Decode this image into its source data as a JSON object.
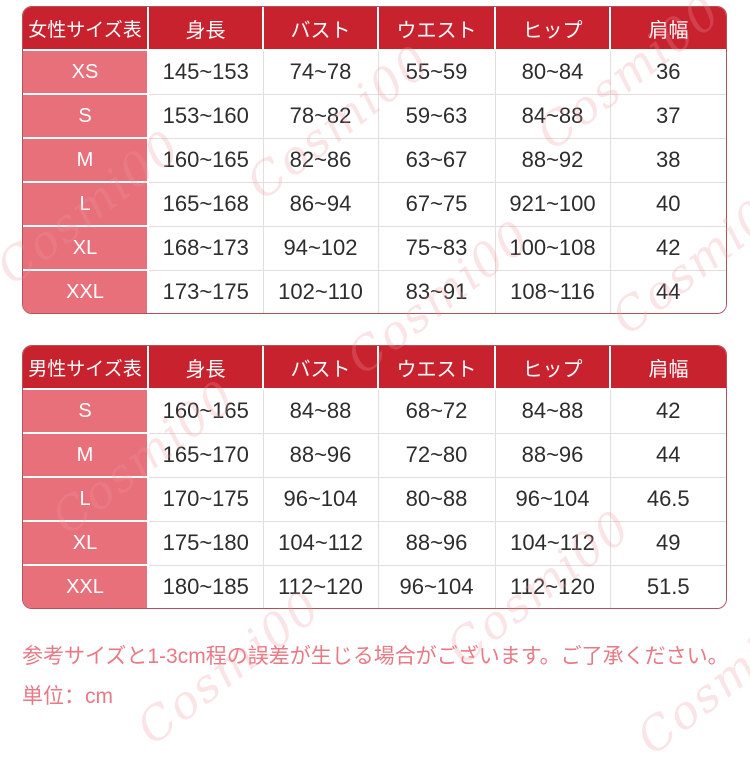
{
  "page": {
    "note_line1": "参考サイズと1-3cm程の誤差が生じる場合がございます。ご了承ください。",
    "note_line2": "単位：cm",
    "watermark_text": "Cosmi00"
  },
  "colors": {
    "header_bg": "#c9222f",
    "size_column_bg": "#e8707a",
    "outer_border": "#b2515a",
    "grid_line": "#e6dcdc",
    "body_text": "#2d2d2d",
    "header_text": "#ffffff",
    "note_text": "#e87a85"
  },
  "tables": [
    {
      "title": "女性サイズ表",
      "columns": [
        "身長",
        "バスト",
        "ウエスト",
        "ヒップ",
        "肩幅"
      ],
      "rows": [
        {
          "size": "XS",
          "values": [
            "145~153",
            "74~78",
            "55~59",
            "80~84",
            "36"
          ]
        },
        {
          "size": "S",
          "values": [
            "153~160",
            "78~82",
            "59~63",
            "84~88",
            "37"
          ]
        },
        {
          "size": "M",
          "values": [
            "160~165",
            "82~86",
            "63~67",
            "88~92",
            "38"
          ]
        },
        {
          "size": "L",
          "values": [
            "165~168",
            "86~94",
            "67~75",
            "921~100",
            "40"
          ]
        },
        {
          "size": "XL",
          "values": [
            "168~173",
            "94~102",
            "75~83",
            "100~108",
            "42"
          ]
        },
        {
          "size": "XXL",
          "values": [
            "173~175",
            "102~110",
            "83~91",
            "108~116",
            "44"
          ]
        }
      ]
    },
    {
      "title": "男性サイズ表",
      "columns": [
        "身長",
        "バスト",
        "ウエスト",
        "ヒップ",
        "肩幅"
      ],
      "rows": [
        {
          "size": "S",
          "values": [
            "160~165",
            "84~88",
            "68~72",
            "84~88",
            "42"
          ]
        },
        {
          "size": "M",
          "values": [
            "165~170",
            "88~96",
            "72~80",
            "88~96",
            "44"
          ]
        },
        {
          "size": "L",
          "values": [
            "170~175",
            "96~104",
            "80~88",
            "96~104",
            "46.5"
          ]
        },
        {
          "size": "XL",
          "values": [
            "175~180",
            "104~112",
            "88~96",
            "104~112",
            "49"
          ]
        },
        {
          "size": "XXL",
          "values": [
            "180~185",
            "112~120",
            "96~104",
            "112~120",
            "51.5"
          ]
        }
      ]
    }
  ]
}
